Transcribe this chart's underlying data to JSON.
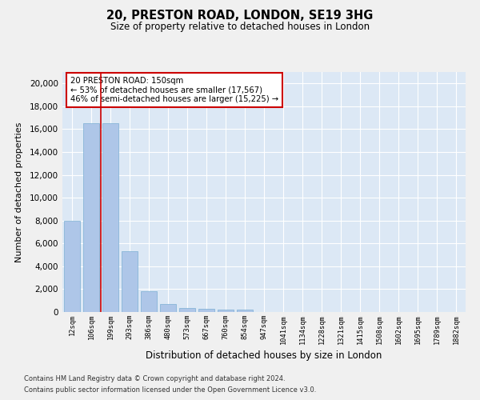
{
  "title": "20, PRESTON ROAD, LONDON, SE19 3HG",
  "subtitle": "Size of property relative to detached houses in London",
  "xlabel": "Distribution of detached houses by size in London",
  "ylabel": "Number of detached properties",
  "categories": [
    "12sqm",
    "106sqm",
    "199sqm",
    "293sqm",
    "386sqm",
    "480sqm",
    "573sqm",
    "667sqm",
    "760sqm",
    "854sqm",
    "947sqm",
    "1041sqm",
    "1134sqm",
    "1228sqm",
    "1321sqm",
    "1415sqm",
    "1508sqm",
    "1602sqm",
    "1695sqm",
    "1789sqm",
    "1882sqm"
  ],
  "values": [
    8000,
    16500,
    16500,
    5350,
    1850,
    700,
    330,
    270,
    200,
    200,
    0,
    0,
    0,
    0,
    0,
    0,
    0,
    0,
    0,
    0,
    0
  ],
  "bar_color": "#aec6e8",
  "bar_edge_color": "#7bafd4",
  "marker_line_color": "#cc0000",
  "annotation_text": "20 PRESTON ROAD: 150sqm\n← 53% of detached houses are smaller (17,567)\n46% of semi-detached houses are larger (15,225) →",
  "annotation_box_color": "#ffffff",
  "annotation_box_edge_color": "#cc0000",
  "ylim": [
    0,
    21000
  ],
  "yticks": [
    0,
    2000,
    4000,
    6000,
    8000,
    10000,
    12000,
    14000,
    16000,
    18000,
    20000
  ],
  "background_color": "#dce8f5",
  "grid_color": "#ffffff",
  "fig_bg_color": "#f0f0f0",
  "footer_line1": "Contains HM Land Registry data © Crown copyright and database right 2024.",
  "footer_line2": "Contains public sector information licensed under the Open Government Licence v3.0."
}
